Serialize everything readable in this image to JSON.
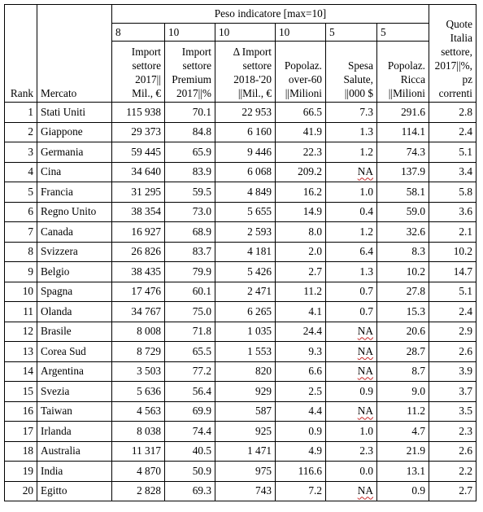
{
  "header": {
    "group_title": "Peso indicatore [max=10]",
    "rank": "Rank",
    "mercato": "Mercato",
    "columns": [
      {
        "weight": "8",
        "label": [
          "Import",
          "settore",
          "2017||",
          "Mil., €"
        ]
      },
      {
        "weight": "10",
        "label": [
          "Import",
          "settore",
          "Premium",
          "2017||%"
        ]
      },
      {
        "weight": "10",
        "label": [
          "Δ Import",
          "settore",
          "2018-'20",
          "||Mil., €"
        ]
      },
      {
        "weight": "10",
        "label": [
          "Popolaz.",
          "over-60",
          "||Milioni"
        ]
      },
      {
        "weight": "5",
        "label": [
          "Spesa",
          "Salute,",
          "||000 $"
        ]
      },
      {
        "weight": "5",
        "label": [
          "Popolaz.",
          "Ricca",
          "||Milioni"
        ]
      }
    ],
    "quote": [
      "Quote",
      "Italia",
      "settore,",
      "2017||%,",
      "pz",
      "correnti"
    ]
  },
  "rows": [
    {
      "rank": "1",
      "mercato": "Stati Uniti",
      "c1": "115 938",
      "c2": "70.1",
      "c3": "22 953",
      "c4": "66.5",
      "c5": "7.3",
      "c6": "291.6",
      "q": "2.8"
    },
    {
      "rank": "2",
      "mercato": "Giappone",
      "c1": "29 373",
      "c2": "84.8",
      "c3": "6 160",
      "c4": "41.9",
      "c5": "1.3",
      "c6": "114.1",
      "q": "2.4"
    },
    {
      "rank": "3",
      "mercato": "Germania",
      "c1": "59 445",
      "c2": "65.9",
      "c3": "9 446",
      "c4": "22.3",
      "c5": "1.2",
      "c6": "74.3",
      "q": "5.1"
    },
    {
      "rank": "4",
      "mercato": "Cina",
      "c1": "34 640",
      "c2": "83.9",
      "c3": "6 068",
      "c4": "209.2",
      "c5": "NA",
      "c6": "137.9",
      "q": "3.4"
    },
    {
      "rank": "5",
      "mercato": "Francia",
      "c1": "31 295",
      "c2": "59.5",
      "c3": "4 849",
      "c4": "16.2",
      "c5": "1.0",
      "c6": "58.1",
      "q": "5.8"
    },
    {
      "rank": "6",
      "mercato": "Regno Unito",
      "c1": "38 354",
      "c2": "73.0",
      "c3": "5 655",
      "c4": "14.9",
      "c5": "0.4",
      "c6": "59.0",
      "q": "3.6"
    },
    {
      "rank": "7",
      "mercato": "Canada",
      "c1": "16 927",
      "c2": "68.9",
      "c3": "2 593",
      "c4": "8.0",
      "c5": "1.2",
      "c6": "32.6",
      "q": "2.1"
    },
    {
      "rank": "8",
      "mercato": "Svizzera",
      "c1": "26 826",
      "c2": "83.7",
      "c3": "4 181",
      "c4": "2.0",
      "c5": "6.4",
      "c6": "8.3",
      "q": "10.2"
    },
    {
      "rank": "9",
      "mercato": "Belgio",
      "c1": "38 435",
      "c2": "79.9",
      "c3": "5 426",
      "c4": "2.7",
      "c5": "1.3",
      "c6": "10.2",
      "q": "14.7"
    },
    {
      "rank": "10",
      "mercato": "Spagna",
      "c1": "17 476",
      "c2": "60.1",
      "c3": "2 471",
      "c4": "11.2",
      "c5": "0.7",
      "c6": "27.8",
      "q": "5.1"
    },
    {
      "rank": "11",
      "mercato": "Olanda",
      "c1": "34 767",
      "c2": "75.0",
      "c3": "6 265",
      "c4": "4.1",
      "c5": "0.7",
      "c6": "15.3",
      "q": "2.4"
    },
    {
      "rank": "12",
      "mercato": "Brasile",
      "c1": "8 008",
      "c2": "71.8",
      "c3": "1 035",
      "c4": "24.4",
      "c5": "NA",
      "c6": "20.6",
      "q": "2.9"
    },
    {
      "rank": "13",
      "mercato": "Corea Sud",
      "c1": "8 729",
      "c2": "65.5",
      "c3": "1 553",
      "c4": "9.3",
      "c5": "NA",
      "c6": "28.7",
      "q": "2.6"
    },
    {
      "rank": "14",
      "mercato": "Argentina",
      "c1": "3 503",
      "c2": "77.2",
      "c3": "820",
      "c4": "6.6",
      "c5": "NA",
      "c6": "8.7",
      "q": "3.9"
    },
    {
      "rank": "15",
      "mercato": "Svezia",
      "c1": "5 636",
      "c2": "56.4",
      "c3": "929",
      "c4": "2.5",
      "c5": "0.9",
      "c6": "9.0",
      "q": "3.7"
    },
    {
      "rank": "16",
      "mercato": "Taiwan",
      "c1": "4 563",
      "c2": "69.9",
      "c3": "587",
      "c4": "4.4",
      "c5": "NA",
      "c6": "11.2",
      "q": "3.5"
    },
    {
      "rank": "17",
      "mercato": "Irlanda",
      "c1": "8 038",
      "c2": "74.4",
      "c3": "925",
      "c4": "0.9",
      "c5": "1.0",
      "c6": "4.7",
      "q": "2.3"
    },
    {
      "rank": "18",
      "mercato": "Australia",
      "c1": "11 317",
      "c2": "40.5",
      "c3": "1 471",
      "c4": "4.9",
      "c5": "2.3",
      "c6": "21.9",
      "q": "2.6"
    },
    {
      "rank": "19",
      "mercato": "India",
      "c1": "4 870",
      "c2": "50.9",
      "c3": "975",
      "c4": "116.6",
      "c5": "0.0",
      "c6": "13.1",
      "q": "2.2"
    },
    {
      "rank": "20",
      "mercato": "Egitto",
      "c1": "2 828",
      "c2": "69.3",
      "c3": "743",
      "c4": "7.2",
      "c5": "NA",
      "c6": "0.9",
      "q": "2.7"
    }
  ]
}
